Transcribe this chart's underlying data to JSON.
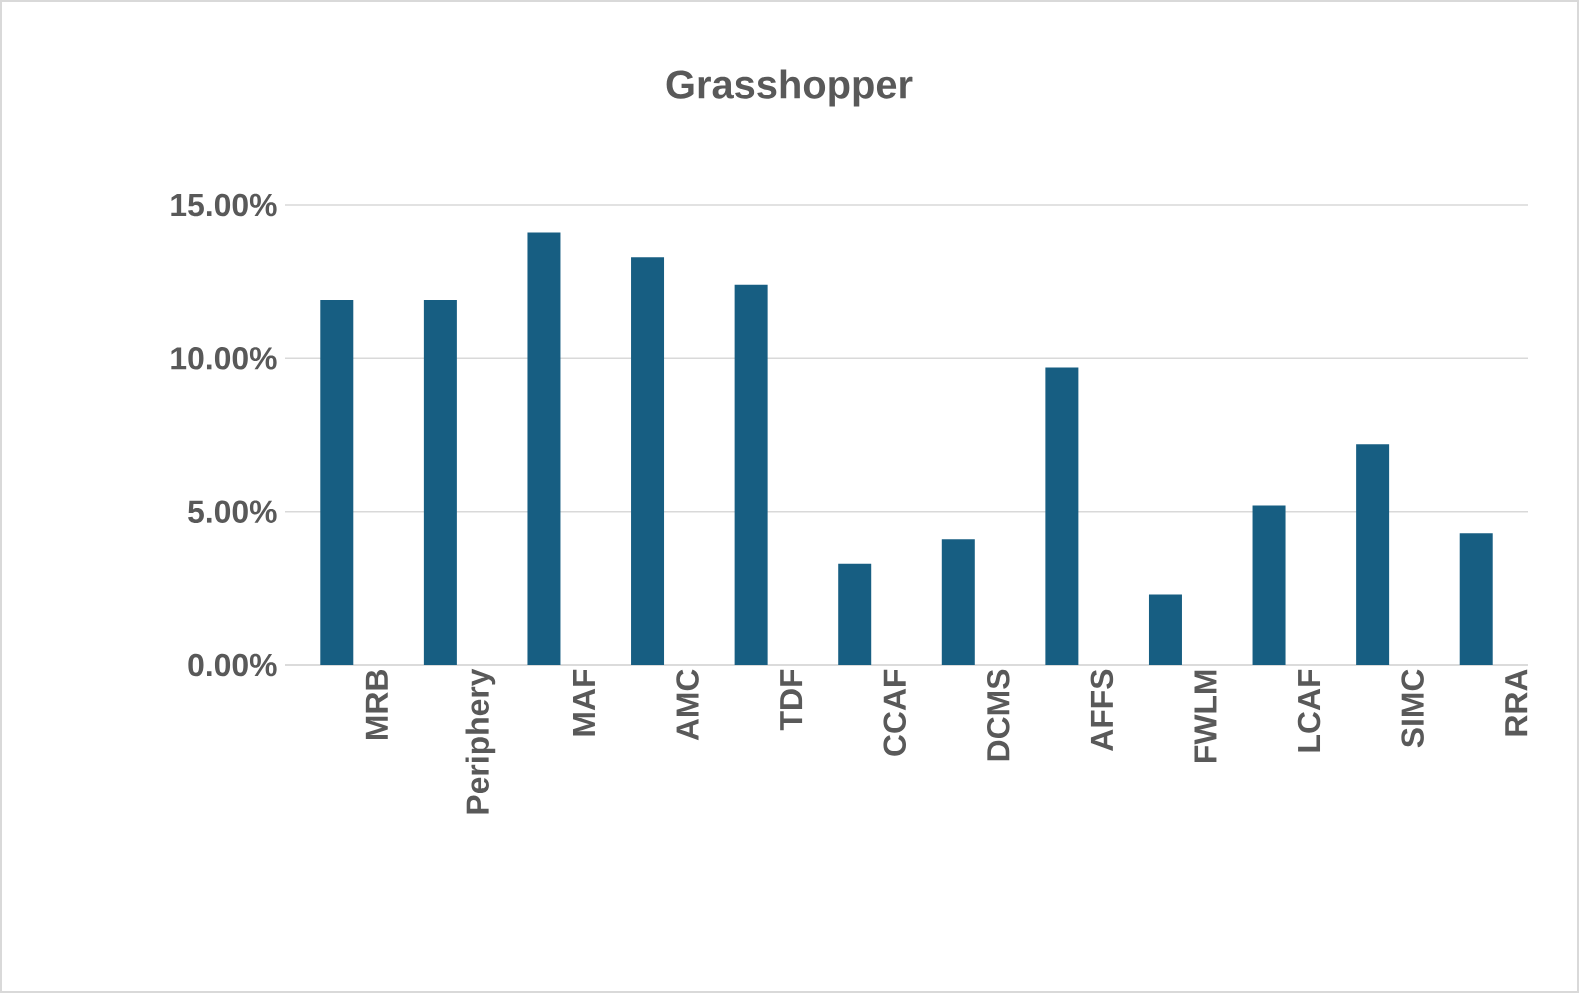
{
  "chart_data": {
    "type": "bar",
    "title": "Grasshopper",
    "categories": [
      "MRB",
      "Periphery",
      "MAF",
      "AMC",
      "TDF",
      "CCAF",
      "DCMS",
      "AFFS",
      "FWLM",
      "LCAF",
      "SIMC",
      "RRA"
    ],
    "values": [
      11.9,
      11.9,
      14.1,
      13.3,
      12.4,
      3.3,
      4.1,
      9.7,
      2.3,
      5.2,
      7.2,
      4.3
    ],
    "color": "#175e82",
    "ylim": [
      0,
      15
    ],
    "yticks": [
      {
        "value": 0,
        "label": "0.00%"
      },
      {
        "value": 5,
        "label": "5.00%"
      },
      {
        "value": 10,
        "label": "10.00%"
      },
      {
        "value": 15,
        "label": "15.00%"
      }
    ],
    "grid": "y"
  }
}
